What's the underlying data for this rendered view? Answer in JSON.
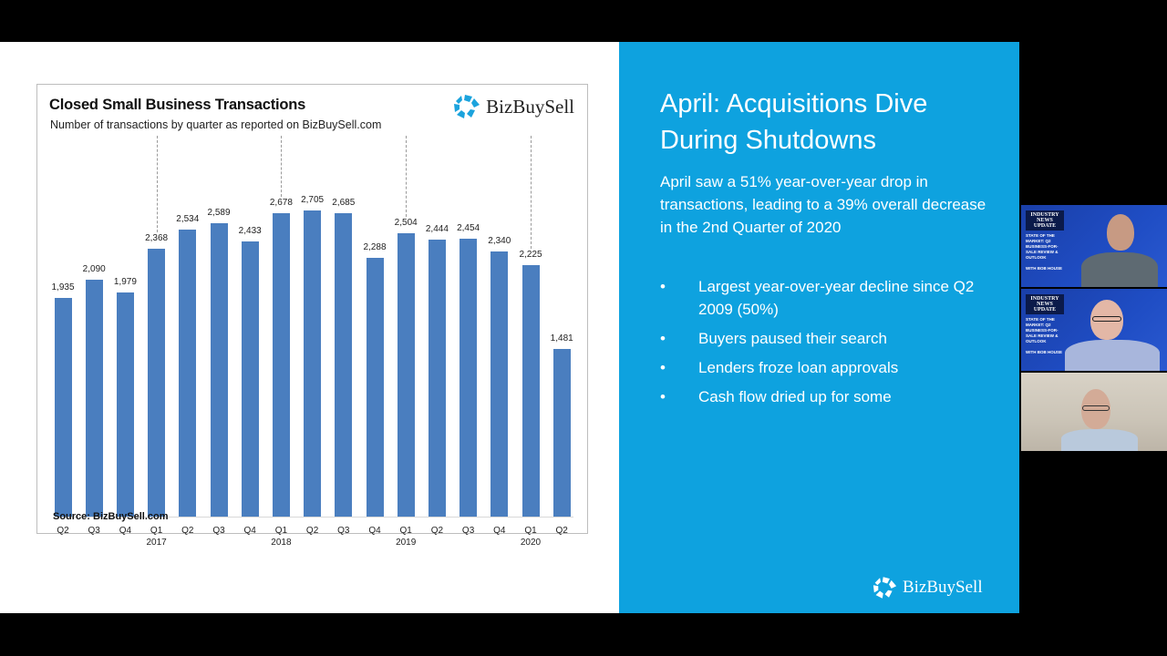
{
  "slide": {
    "chart_card": {
      "title": "Closed Small Business Transactions",
      "subtitle": "Number of transactions by quarter as reported on BizBuySell.com",
      "logo_text": "BizBuySell",
      "source": "Source: BizBuySell.com"
    },
    "right_panel": {
      "title": "April: Acquisitions Dive During Shutdowns",
      "intro": "April saw a 51% year-over-year drop in transactions, leading to a 39% overall decrease in the 2nd Quarter of 2020",
      "bullet_glyph": "•",
      "bullets": [
        "Largest year-over-year decline since Q2 2009 (50%)",
        "Buyers paused their search",
        "Lenders froze loan approvals",
        "Cash flow dried up for some"
      ],
      "logo_text": "BizBuySell",
      "background_color": "#0ea2df"
    }
  },
  "video_participants": [
    {
      "banner_brand": "INDUSTRY NEWS UPDATE",
      "banner_text": "STATE OF THE MARKET: Q2 BUSINESS-FOR-SALE REVIEW & OUTLOOK",
      "banner_host": "WITH BOB HOUSE"
    },
    {
      "banner_brand": "INDUSTRY NEWS UPDATE",
      "banner_text": "STATE OF THE MARKET: Q2 BUSINESS-FOR-SALE REVIEW & OUTLOOK",
      "banner_host": "WITH BOB HOUSE"
    },
    {}
  ],
  "chart_data": {
    "type": "bar",
    "title": "Closed Small Business Transactions",
    "subtitle": "Number of transactions by quarter as reported on BizBuySell.com",
    "xlabel": "",
    "ylabel": "",
    "categories": [
      "Q2 2016",
      "Q3 2016",
      "Q4 2016",
      "Q1 2017",
      "Q2 2017",
      "Q3 2017",
      "Q4 2017",
      "Q1 2018",
      "Q2 2018",
      "Q3 2018",
      "Q4 2018",
      "Q1 2019",
      "Q2 2019",
      "Q3 2019",
      "Q4 2019",
      "Q1 2020",
      "Q2 2020"
    ],
    "tick_labels": [
      "Q2",
      "Q3",
      "Q4",
      "Q1",
      "Q2",
      "Q3",
      "Q4",
      "Q1",
      "Q2",
      "Q3",
      "Q4",
      "Q1",
      "Q2",
      "Q3",
      "Q4",
      "Q1",
      "Q2"
    ],
    "year_labels": {
      "3": "2017",
      "7": "2018",
      "11": "2019",
      "15": "2020"
    },
    "values": [
      1935,
      2090,
      1979,
      2368,
      2534,
      2589,
      2433,
      2678,
      2705,
      2685,
      2288,
      2504,
      2444,
      2454,
      2340,
      2225,
      1481
    ],
    "value_labels": [
      "1,935",
      "2,090",
      "1,979",
      "2,368",
      "2,534",
      "2,589",
      "2,433",
      "2,678",
      "2,705",
      "2,685",
      "2,288",
      "2,504",
      "2,444",
      "2,454",
      "2,340",
      "2,225",
      "1,481"
    ],
    "bar_color": "#4a7ebf",
    "grid": false,
    "legend": null,
    "year_dividers_at": [
      3,
      7,
      11,
      15
    ],
    "source": "Source: BizBuySell.com"
  }
}
